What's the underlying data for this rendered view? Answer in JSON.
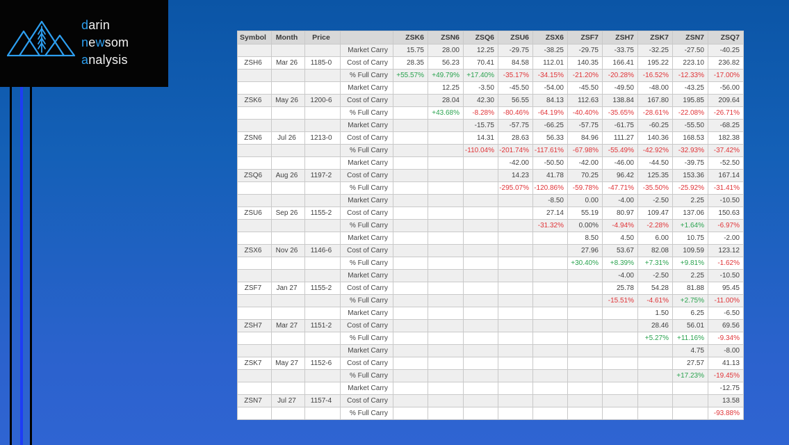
{
  "logo": {
    "lines": [
      {
        "parts": [
          {
            "text": "d",
            "accent": true
          },
          {
            "text": "arin",
            "accent": false
          }
        ]
      },
      {
        "parts": [
          {
            "text": "n",
            "accent": true
          },
          {
            "text": "e",
            "accent": false
          },
          {
            "text": "w",
            "accent": true
          },
          {
            "text": "som",
            "accent": false
          }
        ]
      },
      {
        "parts": [
          {
            "text": "a",
            "accent": true
          },
          {
            "text": "nalysis",
            "accent": false
          }
        ]
      }
    ],
    "icon": "mountains-wheat-icon"
  },
  "colors": {
    "accent_blue": "#2d9ff0",
    "line_blue": "#1e3cf5",
    "positive": "#2aa34f",
    "negative": "#e03438",
    "header_bg": "#d8d8d8",
    "stripe_bg": "#efefef",
    "background_top": "#0b55a6",
    "background_bottom": "#2f64d2"
  },
  "chart_data": {
    "type": "table",
    "fixed_headers": [
      "Symbol",
      "Month",
      "Price"
    ],
    "row_label_header": "",
    "row_labels": [
      "Market Carry",
      "Cost of Carry",
      "% Full Carry"
    ],
    "columns": [
      "ZSK6",
      "ZSN6",
      "ZSQ6",
      "ZSU6",
      "ZSX6",
      "ZSF7",
      "ZSH7",
      "ZSK7",
      "ZSN7",
      "ZSQ7"
    ],
    "groups": [
      {
        "symbol": "ZSH6",
        "month": "Mar 26",
        "price": "1185-0",
        "market_carry": [
          "15.75",
          "28.00",
          "12.25",
          "-29.75",
          "-38.25",
          "-29.75",
          "-33.75",
          "-32.25",
          "-27.50",
          "-40.25"
        ],
        "cost_of_carry": [
          "28.35",
          "56.23",
          "70.41",
          "84.58",
          "112.01",
          "140.35",
          "166.41",
          "195.22",
          "223.10",
          "236.82"
        ],
        "pct_full_carry": [
          "+55.57%",
          "+49.79%",
          "+17.40%",
          "-35.17%",
          "-34.15%",
          "-21.20%",
          "-20.28%",
          "-16.52%",
          "-12.33%",
          "-17.00%"
        ]
      },
      {
        "symbol": "ZSK6",
        "month": "May 26",
        "price": "1200-6",
        "market_carry": [
          "",
          "12.25",
          "-3.50",
          "-45.50",
          "-54.00",
          "-45.50",
          "-49.50",
          "-48.00",
          "-43.25",
          "-56.00"
        ],
        "cost_of_carry": [
          "",
          "28.04",
          "42.30",
          "56.55",
          "84.13",
          "112.63",
          "138.84",
          "167.80",
          "195.85",
          "209.64"
        ],
        "pct_full_carry": [
          "",
          "+43.68%",
          "-8.28%",
          "-80.46%",
          "-64.19%",
          "-40.40%",
          "-35.65%",
          "-28.61%",
          "-22.08%",
          "-26.71%"
        ]
      },
      {
        "symbol": "ZSN6",
        "month": "Jul 26",
        "price": "1213-0",
        "market_carry": [
          "",
          "",
          "-15.75",
          "-57.75",
          "-66.25",
          "-57.75",
          "-61.75",
          "-60.25",
          "-55.50",
          "-68.25"
        ],
        "cost_of_carry": [
          "",
          "",
          "14.31",
          "28.63",
          "56.33",
          "84.96",
          "111.27",
          "140.36",
          "168.53",
          "182.38"
        ],
        "pct_full_carry": [
          "",
          "",
          "-110.04%",
          "-201.74%",
          "-117.61%",
          "-67.98%",
          "-55.49%",
          "-42.92%",
          "-32.93%",
          "-37.42%"
        ]
      },
      {
        "symbol": "ZSQ6",
        "month": "Aug 26",
        "price": "1197-2",
        "market_carry": [
          "",
          "",
          "",
          "-42.00",
          "-50.50",
          "-42.00",
          "-46.00",
          "-44.50",
          "-39.75",
          "-52.50"
        ],
        "cost_of_carry": [
          "",
          "",
          "",
          "14.23",
          "41.78",
          "70.25",
          "96.42",
          "125.35",
          "153.36",
          "167.14"
        ],
        "pct_full_carry": [
          "",
          "",
          "",
          "-295.07%",
          "-120.86%",
          "-59.78%",
          "-47.71%",
          "-35.50%",
          "-25.92%",
          "-31.41%"
        ]
      },
      {
        "symbol": "ZSU6",
        "month": "Sep 26",
        "price": "1155-2",
        "market_carry": [
          "",
          "",
          "",
          "",
          "-8.50",
          "0.00",
          "-4.00",
          "-2.50",
          "2.25",
          "-10.50"
        ],
        "cost_of_carry": [
          "",
          "",
          "",
          "",
          "27.14",
          "55.19",
          "80.97",
          "109.47",
          "137.06",
          "150.63"
        ],
        "pct_full_carry": [
          "",
          "",
          "",
          "",
          "-31.32%",
          "0.00%",
          "-4.94%",
          "-2.28%",
          "+1.64%",
          "-6.97%"
        ]
      },
      {
        "symbol": "ZSX6",
        "month": "Nov 26",
        "price": "1146-6",
        "market_carry": [
          "",
          "",
          "",
          "",
          "",
          "8.50",
          "4.50",
          "6.00",
          "10.75",
          "-2.00"
        ],
        "cost_of_carry": [
          "",
          "",
          "",
          "",
          "",
          "27.96",
          "53.67",
          "82.08",
          "109.59",
          "123.12"
        ],
        "pct_full_carry": [
          "",
          "",
          "",
          "",
          "",
          "+30.40%",
          "+8.39%",
          "+7.31%",
          "+9.81%",
          "-1.62%"
        ]
      },
      {
        "symbol": "ZSF7",
        "month": "Jan 27",
        "price": "1155-2",
        "market_carry": [
          "",
          "",
          "",
          "",
          "",
          "",
          "-4.00",
          "-2.50",
          "2.25",
          "-10.50"
        ],
        "cost_of_carry": [
          "",
          "",
          "",
          "",
          "",
          "",
          "25.78",
          "54.28",
          "81.88",
          "95.45"
        ],
        "pct_full_carry": [
          "",
          "",
          "",
          "",
          "",
          "",
          "-15.51%",
          "-4.61%",
          "+2.75%",
          "-11.00%"
        ]
      },
      {
        "symbol": "ZSH7",
        "month": "Mar 27",
        "price": "1151-2",
        "market_carry": [
          "",
          "",
          "",
          "",
          "",
          "",
          "",
          "1.50",
          "6.25",
          "-6.50"
        ],
        "cost_of_carry": [
          "",
          "",
          "",
          "",
          "",
          "",
          "",
          "28.46",
          "56.01",
          "69.56"
        ],
        "pct_full_carry": [
          "",
          "",
          "",
          "",
          "",
          "",
          "",
          "+5.27%",
          "+11.16%",
          "-9.34%"
        ]
      },
      {
        "symbol": "ZSK7",
        "month": "May 27",
        "price": "1152-6",
        "market_carry": [
          "",
          "",
          "",
          "",
          "",
          "",
          "",
          "",
          "4.75",
          "-8.00"
        ],
        "cost_of_carry": [
          "",
          "",
          "",
          "",
          "",
          "",
          "",
          "",
          "27.57",
          "41.13"
        ],
        "pct_full_carry": [
          "",
          "",
          "",
          "",
          "",
          "",
          "",
          "",
          "+17.23%",
          "-19.45%"
        ]
      },
      {
        "symbol": "ZSN7",
        "month": "Jul 27",
        "price": "1157-4",
        "market_carry": [
          "",
          "",
          "",
          "",
          "",
          "",
          "",
          "",
          "",
          "-12.75"
        ],
        "cost_of_carry": [
          "",
          "",
          "",
          "",
          "",
          "",
          "",
          "",
          "",
          "13.58"
        ],
        "pct_full_carry": [
          "",
          "",
          "",
          "",
          "",
          "",
          "",
          "",
          "",
          "-93.88%"
        ]
      }
    ]
  }
}
